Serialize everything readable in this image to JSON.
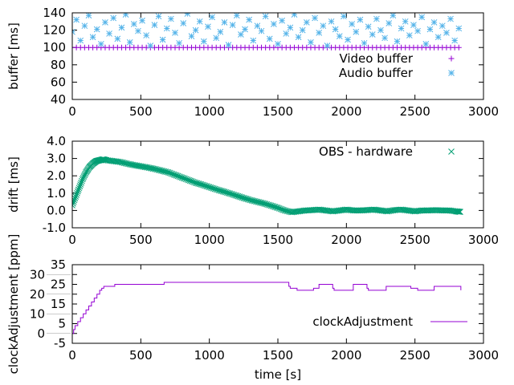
{
  "chart_data": [
    {
      "type": "scatter",
      "ylabel": "buffer [ms]",
      "xlim": [
        0,
        3000
      ],
      "ylim": [
        40,
        140
      ],
      "xticks": [
        "0",
        "500",
        "1000",
        "1500",
        "2000",
        "2500",
        "3000"
      ],
      "yticks": [
        "40",
        "60",
        "80",
        "100",
        "120",
        "140"
      ],
      "legend_position": "bottom-right",
      "x": [
        0,
        30,
        60,
        90,
        120,
        150,
        180,
        210,
        240,
        270,
        300,
        330,
        360,
        390,
        420,
        450,
        480,
        510,
        540,
        570,
        600,
        630,
        660,
        690,
        720,
        750,
        780,
        810,
        840,
        870,
        900,
        930,
        960,
        990,
        1020,
        1050,
        1080,
        1110,
        1140,
        1170,
        1200,
        1230,
        1260,
        1290,
        1320,
        1350,
        1380,
        1410,
        1440,
        1470,
        1500,
        1530,
        1560,
        1590,
        1620,
        1650,
        1680,
        1710,
        1740,
        1770,
        1800,
        1830,
        1860,
        1890,
        1920,
        1950,
        1980,
        2010,
        2040,
        2070,
        2100,
        2130,
        2160,
        2190,
        2220,
        2250,
        2280,
        2310,
        2340,
        2370,
        2400,
        2430,
        2460,
        2490,
        2520,
        2550,
        2580,
        2610,
        2640,
        2670,
        2700,
        2730,
        2760,
        2790,
        2820
      ],
      "series": [
        {
          "name": "Video buffer",
          "marker": "+",
          "color": "#9400d3",
          "values": [
            100,
            100,
            100,
            100,
            100,
            100,
            100,
            100,
            100,
            100,
            100,
            100,
            100,
            100,
            100,
            100,
            100,
            100,
            100,
            100,
            100,
            100,
            100,
            100,
            100,
            100,
            100,
            100,
            100,
            100,
            100,
            100,
            100,
            100,
            100,
            100,
            100,
            100,
            100,
            100,
            100,
            100,
            100,
            100,
            100,
            100,
            100,
            100,
            100,
            100,
            100,
            100,
            100,
            100,
            100,
            100,
            100,
            100,
            100,
            100,
            100,
            100,
            100,
            100,
            100,
            100,
            100,
            100,
            100,
            100,
            100,
            100,
            100,
            100,
            100,
            100,
            100,
            100,
            100,
            100,
            100,
            100,
            100,
            100,
            100,
            100,
            100,
            100,
            100,
            100,
            100,
            100,
            100,
            100,
            100
          ]
        },
        {
          "name": "Audio buffer",
          "marker": "*",
          "color": "#56b4e9",
          "values": [
            118,
            132,
            108,
            125,
            137,
            112,
            121,
            104,
            129,
            116,
            134,
            110,
            123,
            138,
            106,
            127,
            119,
            131,
            114,
            102,
            126,
            136,
            109,
            122,
            133,
            117,
            105,
            128,
            139,
            113,
            120,
            130,
            107,
            124,
            135,
            111,
            118,
            129,
            103,
            126,
            137,
            115,
            121,
            132,
            108,
            125,
            119,
            136,
            110,
            127,
            104,
            131,
            116,
            123,
            138,
            112,
            120,
            129,
            106,
            134,
            117,
            125,
            102,
            130,
            121,
            113,
            136,
            109,
            127,
            118,
            132,
            105,
            124,
            115,
            133,
            120,
            111,
            128,
            137,
            107,
            122,
            130,
            114,
            126,
            119,
            135,
            104,
            121,
            129,
            112,
            125,
            117,
            133,
            108,
            122
          ]
        }
      ]
    },
    {
      "type": "scatter",
      "ylabel": "drift [ms]",
      "xlim": [
        0,
        3000
      ],
      "ylim": [
        -1.0,
        4.0
      ],
      "xticks": [
        "0",
        "500",
        "1000",
        "1500",
        "2000",
        "2500",
        "3000"
      ],
      "yticks": [
        "-1.0",
        "0.0",
        "1.0",
        "2.0",
        "3.0",
        "4.0"
      ],
      "legend_position": "top-right",
      "series": [
        {
          "name": "OBS - hardware",
          "marker": "x",
          "color": "#009e73",
          "x": [
            0,
            25,
            50,
            75,
            100,
            125,
            150,
            175,
            200,
            225,
            250,
            300,
            350,
            400,
            450,
            500,
            550,
            600,
            650,
            700,
            750,
            800,
            850,
            900,
            950,
            1000,
            1050,
            1100,
            1150,
            1200,
            1250,
            1300,
            1350,
            1400,
            1450,
            1500,
            1550,
            1600,
            1650,
            1700,
            1750,
            1800,
            1850,
            1900,
            1950,
            2000,
            2050,
            2100,
            2150,
            2200,
            2250,
            2300,
            2350,
            2400,
            2450,
            2500,
            2550,
            2600,
            2650,
            2700,
            2750,
            2800,
            2830
          ],
          "values": [
            0.3,
            0.8,
            1.3,
            1.8,
            2.2,
            2.5,
            2.7,
            2.85,
            2.9,
            2.95,
            2.9,
            2.85,
            2.8,
            2.7,
            2.62,
            2.55,
            2.48,
            2.4,
            2.3,
            2.2,
            2.05,
            1.9,
            1.75,
            1.6,
            1.48,
            1.35,
            1.22,
            1.1,
            0.98,
            0.85,
            0.72,
            0.6,
            0.5,
            0.4,
            0.28,
            0.15,
            0.0,
            -0.1,
            -0.05,
            0.0,
            0.02,
            0.05,
            0.0,
            -0.05,
            0.0,
            0.05,
            0.0,
            0.0,
            0.02,
            0.05,
            0.0,
            -0.05,
            0.02,
            0.05,
            0.0,
            -0.05,
            0.0,
            0.0,
            0.02,
            0.0,
            0.0,
            -0.05,
            -0.08
          ]
        }
      ]
    },
    {
      "type": "line",
      "xlabel": "time [s]",
      "ylabel": "clockAdjustment [ppm]",
      "xlim": [
        0,
        3000
      ],
      "ylim": [
        -5,
        35
      ],
      "xticks": [
        "0",
        "500",
        "1000",
        "1500",
        "2000",
        "2500",
        "3000"
      ],
      "yticks": [
        "-5",
        "0",
        "5",
        "10",
        "15",
        "20",
        "25",
        "30",
        "35"
      ],
      "legend_position": "bottom-right",
      "series": [
        {
          "name": "clockAdjustment",
          "color": "#9400d3",
          "step": true,
          "x": [
            0,
            10,
            20,
            40,
            60,
            80,
            100,
            120,
            140,
            160,
            180,
            200,
            215,
            230,
            310,
            670,
            1570,
            1580,
            1590,
            1640,
            1750,
            1760,
            1800,
            1900,
            1910,
            2040,
            2050,
            2150,
            2160,
            2280,
            2290,
            2460,
            2470,
            2520,
            2630,
            2640,
            2830,
            2835
          ],
          "values": [
            0,
            2,
            4,
            6,
            8,
            10,
            12,
            14,
            16,
            18,
            20,
            22,
            23,
            24,
            25,
            26,
            26,
            24,
            23,
            22,
            22,
            23,
            25,
            23,
            22,
            22,
            25,
            23,
            22,
            22,
            24,
            24,
            23,
            22,
            22,
            24,
            24,
            22
          ]
        }
      ]
    }
  ]
}
